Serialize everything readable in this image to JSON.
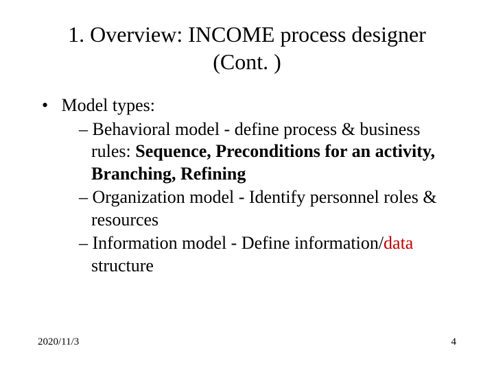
{
  "title_fontsize": 32,
  "body_fontsize": 26,
  "footer_fontsize": 15,
  "text_color": "#000000",
  "highlight_color": "#c00000",
  "background_color": "#ffffff",
  "title_line1": "1. Overview: INCOME process designer",
  "title_line2": "(Cont. )",
  "bullet1": "Model types:",
  "sub1_prefix": "Behavioral model - define process & business rules: ",
  "sub1_bold": "Sequence, Preconditions for an activity, Branching, Refining",
  "sub2": "Organization model - Identify personnel roles & resources",
  "sub3_prefix": "Information model - Define information/",
  "sub3_highlight": "data",
  "sub3_suffix": " structure",
  "footer_date": "2020/11/3",
  "footer_page": "4"
}
